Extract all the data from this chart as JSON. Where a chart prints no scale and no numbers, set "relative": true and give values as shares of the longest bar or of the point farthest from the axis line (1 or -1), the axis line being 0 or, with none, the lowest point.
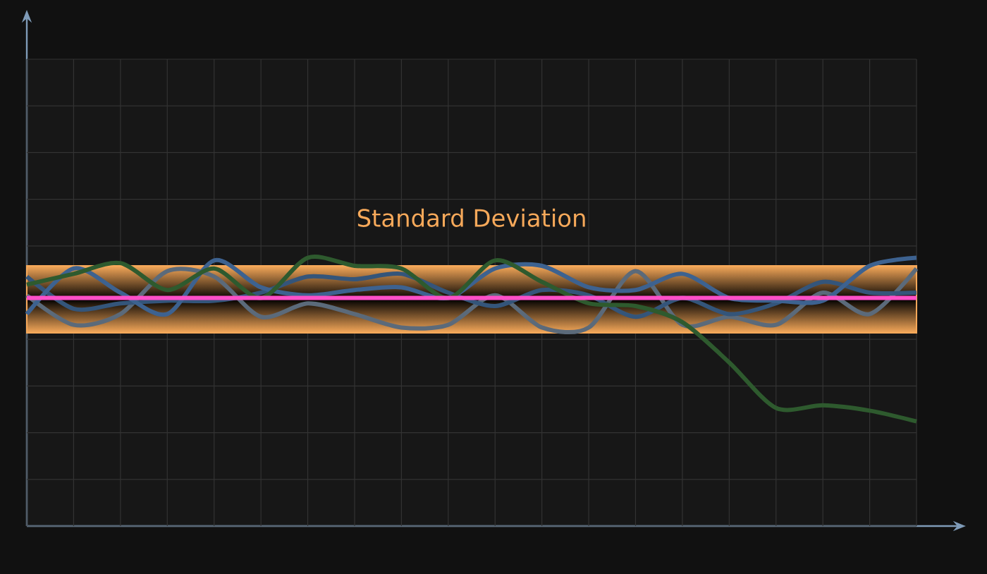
{
  "chart_data": {
    "type": "line",
    "relative": true,
    "grid": true,
    "marker": "none",
    "categories": [
      null,
      null,
      null,
      null,
      null,
      null,
      null,
      null,
      null,
      null,
      null,
      null,
      null,
      null,
      null,
      null,
      null,
      null,
      null,
      null
    ],
    "series": [
      {
        "color": "#5b6a7a",
        "values": [
          0.86,
          0.75,
          0.79,
          0.95,
          0.93,
          0.78,
          0.83,
          0.79,
          0.74,
          0.75,
          0.86,
          0.74,
          0.74,
          0.95,
          0.75,
          0.78,
          0.75,
          0.87,
          0.79,
          0.96
        ]
      },
      {
        "color": "#34557a",
        "values": [
          0.93,
          0.81,
          0.83,
          0.84,
          0.84,
          0.87,
          0.93,
          0.92,
          0.94,
          0.87,
          0.82,
          0.88,
          0.86,
          0.78,
          0.85,
          0.79,
          0.83,
          0.91,
          0.87,
          0.87
        ]
      },
      {
        "color": "#3d6290",
        "values": [
          0.79,
          0.96,
          0.87,
          0.79,
          0.99,
          0.89,
          0.86,
          0.88,
          0.89,
          0.85,
          0.96,
          0.97,
          0.89,
          0.88,
          0.94,
          0.85,
          0.84,
          0.84,
          0.97,
          1.0
        ]
      },
      {
        "color": "#2e5a2e",
        "values": [
          0.9,
          0.94,
          0.98,
          0.88,
          0.96,
          0.85,
          1.0,
          0.97,
          0.96,
          0.85,
          0.99,
          0.91,
          0.83,
          0.82,
          0.76,
          0.61,
          0.44,
          0.45,
          0.43,
          0.39
        ]
      }
    ],
    "ref_lines": [
      {
        "axis": "y",
        "value": 0.85,
        "color": "#ff4fc8"
      }
    ],
    "bands": [
      {
        "axis": "y",
        "from": 0.72,
        "to": 0.97,
        "label": "Standard Deviation",
        "color": "#f7a95a"
      }
    ]
  }
}
